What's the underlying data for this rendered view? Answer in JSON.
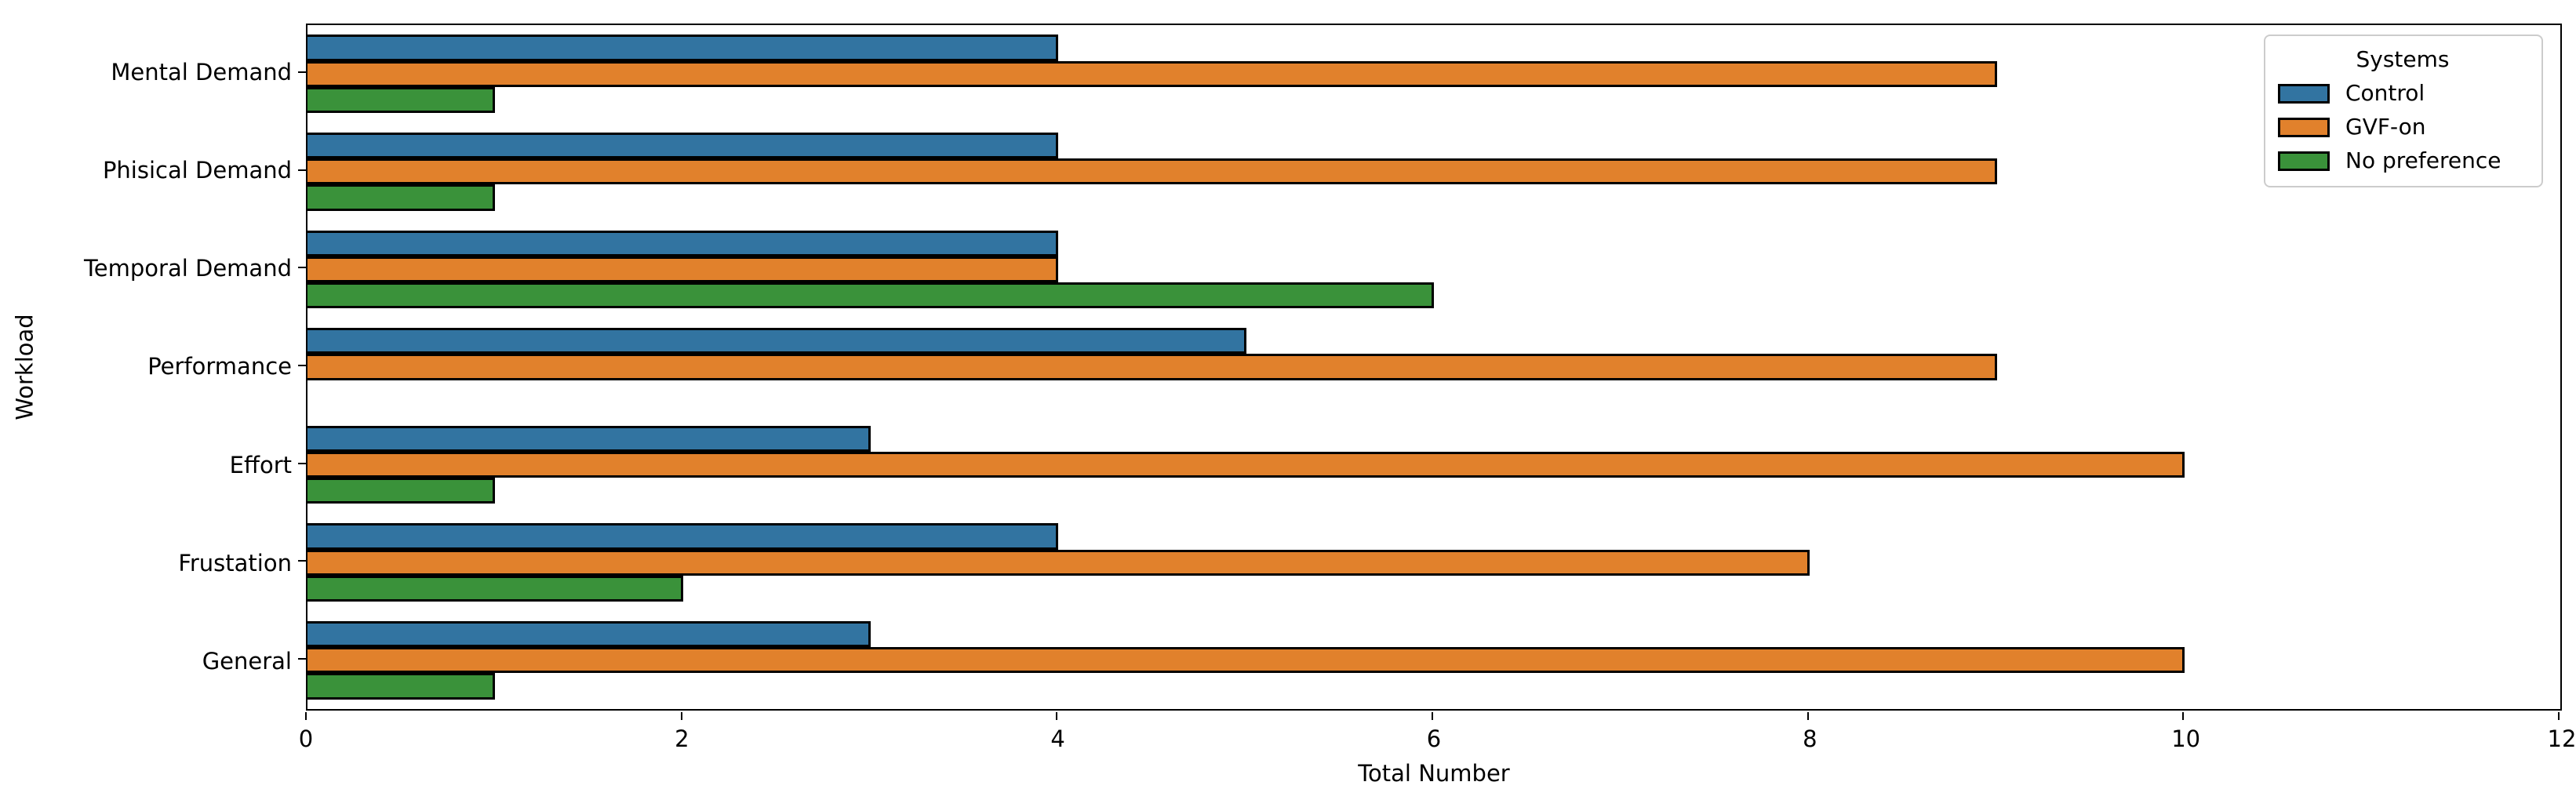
{
  "chart_data": {
    "type": "bar",
    "orientation": "horizontal",
    "categories": [
      "Mental Demand",
      "Phisical Demand",
      "Temporal Demand",
      "Performance",
      "Effort",
      "Frustation",
      "General"
    ],
    "series": [
      {
        "name": "Control",
        "color": "#3274a1",
        "values": [
          4,
          4,
          4,
          5,
          3,
          4,
          3
        ]
      },
      {
        "name": "GVF-on",
        "color": "#e1812c",
        "values": [
          9,
          9,
          4,
          9,
          10,
          8,
          10
        ]
      },
      {
        "name": "No preference",
        "color": "#3a923a",
        "values": [
          1,
          1,
          6,
          0,
          1,
          2,
          1
        ]
      }
    ],
    "xlabel": "Total Number",
    "ylabel": "Workload",
    "xlim": [
      0,
      12
    ],
    "xticks": [
      "0",
      "2",
      "4",
      "6",
      "8",
      "10",
      "12"
    ],
    "legend": {
      "title": "Systems",
      "position": "upper-right"
    },
    "grid": false,
    "bar_edge_color": "#000000",
    "group_fill_fraction": 0.8
  }
}
